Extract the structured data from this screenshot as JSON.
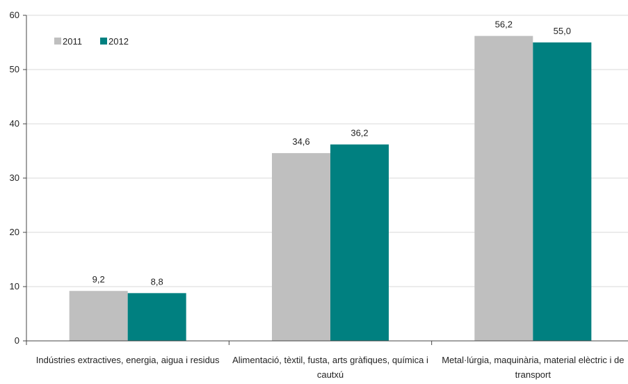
{
  "chart_data": {
    "type": "bar",
    "title": "",
    "xlabel": "",
    "ylabel": "",
    "ylim": [
      0,
      60
    ],
    "yticks": [
      0,
      10,
      20,
      30,
      40,
      50,
      60
    ],
    "grid": true,
    "legend_position": "top-left",
    "categories": [
      [
        "Indústries extractives, energia, aigua i residus"
      ],
      [
        "Alimentació, tèxtil, fusta, arts gràfiques, química  i",
        "cautxú"
      ],
      [
        "Metal·lúrgia, maquinària, material elèctric i de",
        "transport"
      ]
    ],
    "series": [
      {
        "name": "2011",
        "color": "#bfbfbf",
        "values": [
          9.2,
          34.6,
          56.2
        ],
        "labels": [
          "9,2",
          "34,6",
          "56,2"
        ]
      },
      {
        "name": "2012",
        "color": "#008080",
        "values": [
          8.8,
          36.2,
          55.0
        ],
        "labels": [
          "8,8",
          "36,2",
          "55,0"
        ]
      }
    ]
  }
}
